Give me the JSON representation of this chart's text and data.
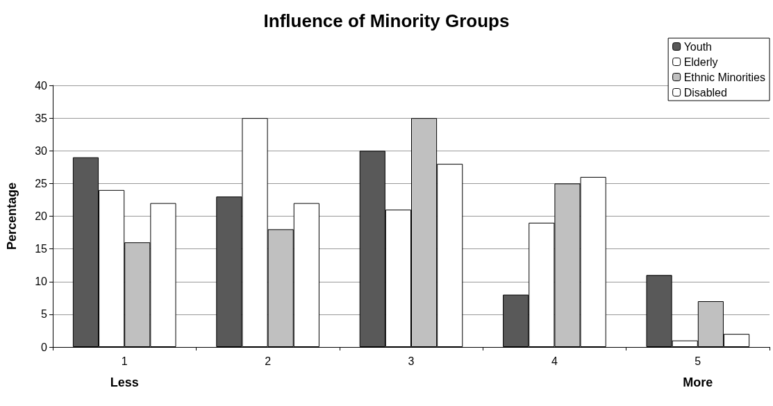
{
  "chart_data": {
    "type": "bar",
    "title": "Influence of Minority Groups",
    "ylabel": "Percentage",
    "categories": [
      "1",
      "2",
      "3",
      "4",
      "5"
    ],
    "series": [
      {
        "name": "Youth",
        "color": "#595959",
        "values": [
          29,
          23,
          30,
          8,
          11
        ]
      },
      {
        "name": "Elderly",
        "color": "#ffffff",
        "values": [
          24,
          35,
          21,
          19,
          1
        ]
      },
      {
        "name": "Ethnic Minorities",
        "color": "#c0c0c0",
        "values": [
          16,
          18,
          35,
          25,
          7
        ]
      },
      {
        "name": "Disabled",
        "color": "#ffffff",
        "values": [
          22,
          22,
          28,
          26,
          2
        ]
      }
    ],
    "ylim": [
      0,
      40
    ],
    "yticks": [
      0,
      5,
      10,
      15,
      20,
      25,
      30,
      35,
      40
    ],
    "grid": "y",
    "legend": "top right",
    "annotations": [
      "Less",
      "More"
    ]
  }
}
